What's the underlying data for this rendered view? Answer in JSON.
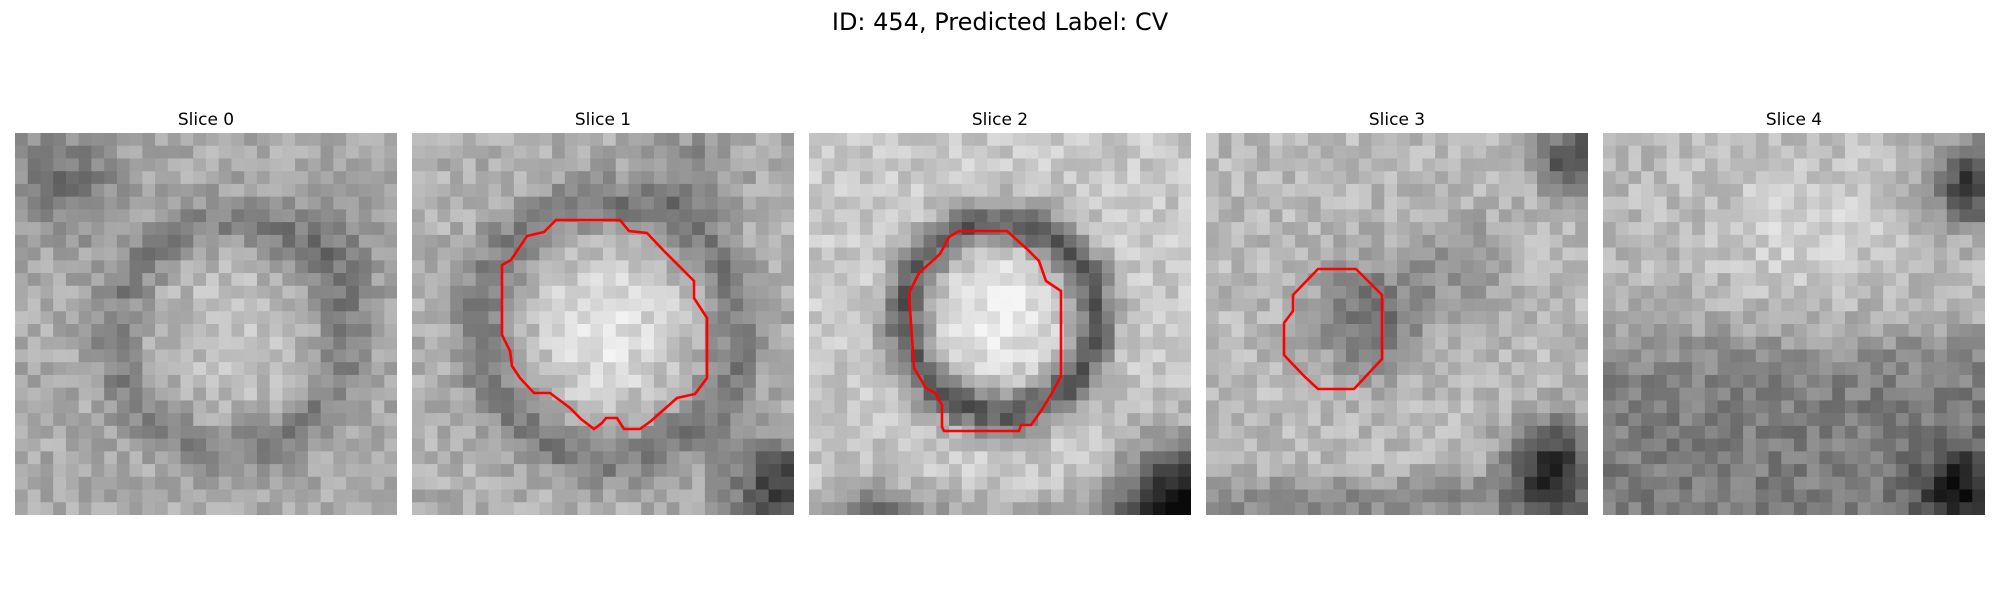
{
  "title": "ID: 454, Predicted Label: CV",
  "panels": [
    {
      "title": "Slice 0",
      "has_contour": false
    },
    {
      "title": "Slice 1",
      "has_contour": true
    },
    {
      "title": "Slice 2",
      "has_contour": true
    },
    {
      "title": "Slice 3",
      "has_contour": true
    },
    {
      "title": "Slice 4",
      "has_contour": false
    }
  ],
  "colors": {
    "contour": "#ff0000",
    "background": "#ffffff"
  }
}
